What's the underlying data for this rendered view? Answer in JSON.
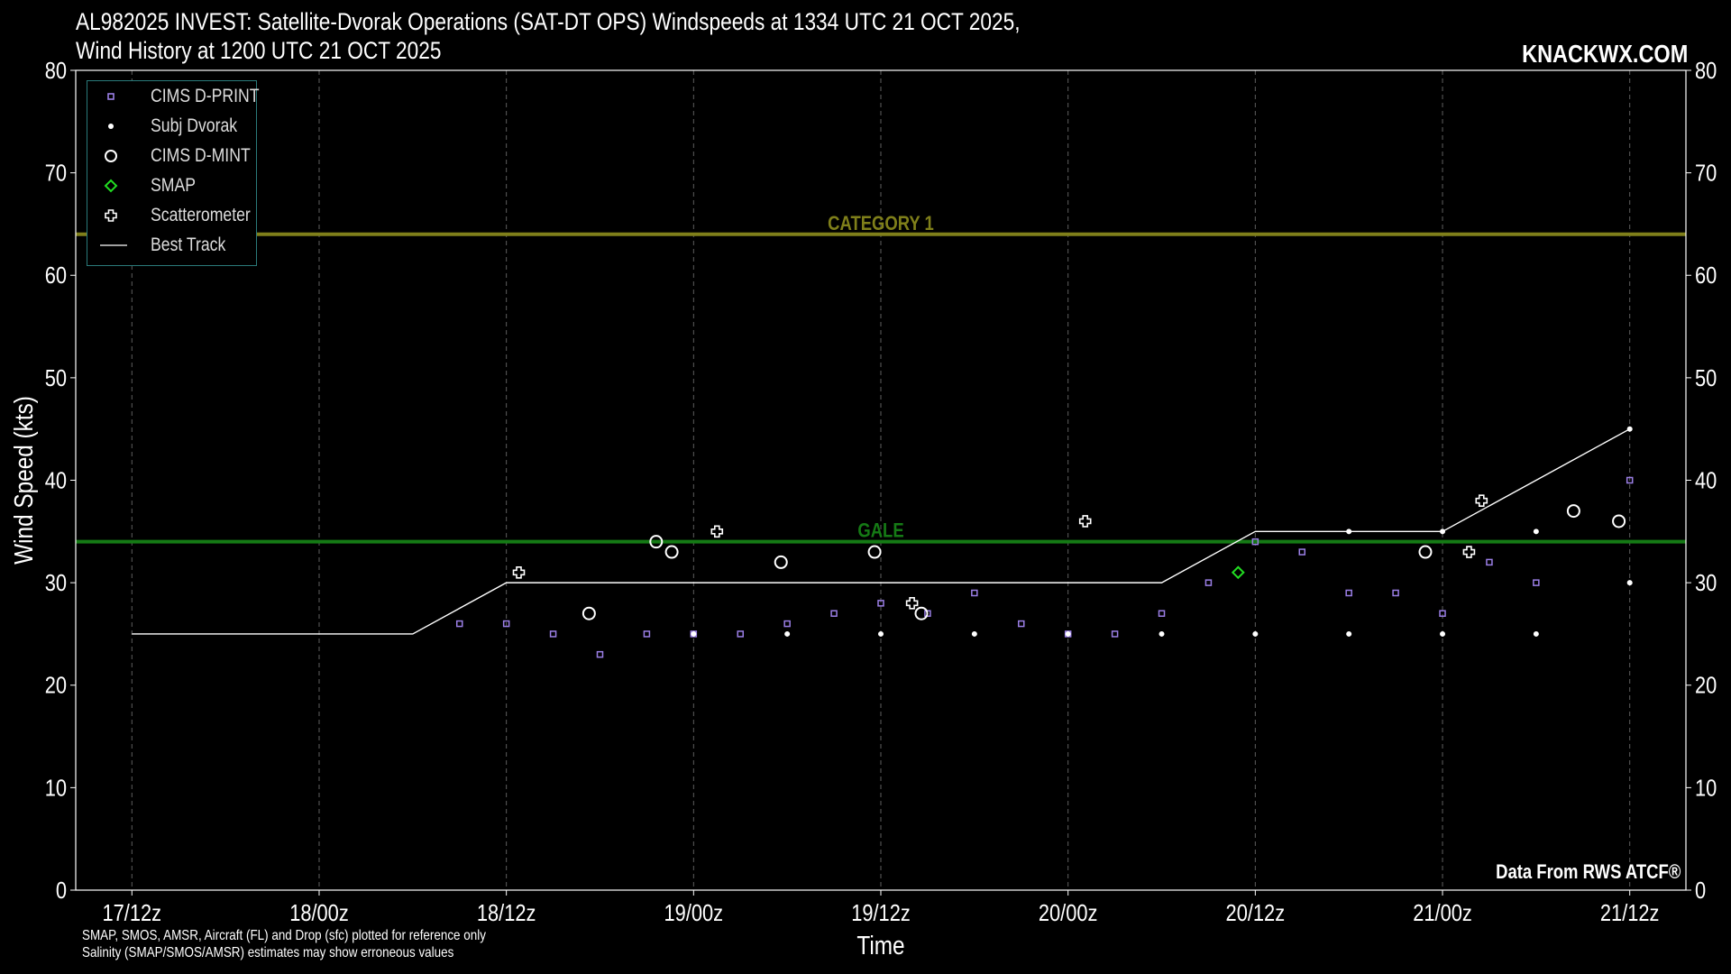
{
  "header": {
    "title_line1": "AL982025 INVEST: Satellite-Dvorak Operations (SAT-DT OPS) Windspeeds at 1334 UTC 21 OCT 2025,",
    "title_line2": "Wind History at 1200 UTC 21 OCT 2025",
    "brand": "KNACKWX.COM"
  },
  "footer": {
    "note_line1": "SMAP, SMOS, AMSR, Aircraft (FL) and Drop (sfc) plotted for reference only",
    "note_line2": "Salinity (SMAP/SMOS/AMSR) estimates may show erroneous values",
    "credit": "Data From RWS ATCF®"
  },
  "legend": [
    {
      "label": "CIMS D-PRINT",
      "icon": "square"
    },
    {
      "label": "Subj Dvorak",
      "icon": "dot"
    },
    {
      "label": "CIMS D-MINT",
      "icon": "circle"
    },
    {
      "label": "SMAP",
      "icon": "diamond"
    },
    {
      "label": "Scatterometer",
      "icon": "plus"
    },
    {
      "label": "Best Track",
      "icon": "line"
    }
  ],
  "colors": {
    "background": "#000000",
    "dprint": "#9b7fe6",
    "subj": "#ffffff",
    "dmint": "#ffffff",
    "smap": "#22dd22",
    "scat": "#ffffff",
    "best_track": "#ffffff",
    "category1": "#7f7f1a",
    "gale": "#157a15",
    "grid": "#888888"
  },
  "chart_data": {
    "type": "scatter",
    "xlabel": "Time",
    "ylabel": "Wind Speed (kts)",
    "x_units": "hours after 17/12z",
    "xlim": [
      -3.6,
      99.6
    ],
    "ylim": [
      0,
      80
    ],
    "yticks": [
      0,
      10,
      20,
      30,
      40,
      50,
      60,
      70,
      80
    ],
    "xticks": [
      {
        "x": 0,
        "label": "17/12z"
      },
      {
        "x": 12,
        "label": "18/00z"
      },
      {
        "x": 24,
        "label": "18/12z"
      },
      {
        "x": 36,
        "label": "19/00z"
      },
      {
        "x": 48,
        "label": "19/12z"
      },
      {
        "x": 60,
        "label": "20/00z"
      },
      {
        "x": 72,
        "label": "20/12z"
      },
      {
        "x": 84,
        "label": "21/00z"
      },
      {
        "x": 96,
        "label": "21/12z"
      }
    ],
    "grid": "vertical dashed",
    "reference_lines": [
      {
        "label": "CATEGORY 1",
        "y": 64
      },
      {
        "label": "GALE",
        "y": 34
      }
    ],
    "series": [
      {
        "name": "CIMS D-PRINT",
        "marker": "square",
        "points": [
          [
            21,
            26
          ],
          [
            24,
            26
          ],
          [
            27,
            25
          ],
          [
            30,
            23
          ],
          [
            33,
            25
          ],
          [
            36,
            25
          ],
          [
            39,
            25
          ],
          [
            42,
            26
          ],
          [
            45,
            27
          ],
          [
            48,
            28
          ],
          [
            51,
            27
          ],
          [
            54,
            29
          ],
          [
            57,
            26
          ],
          [
            60,
            25
          ],
          [
            63,
            25
          ],
          [
            66,
            27
          ],
          [
            69,
            30
          ],
          [
            72,
            34
          ],
          [
            75,
            33
          ],
          [
            78,
            29
          ],
          [
            81,
            29
          ],
          [
            84,
            27
          ],
          [
            87,
            32
          ],
          [
            90,
            30
          ],
          [
            96,
            40
          ]
        ]
      },
      {
        "name": "Subj Dvorak",
        "marker": "dot",
        "points": [
          [
            36,
            25
          ],
          [
            42,
            25
          ],
          [
            48,
            25
          ],
          [
            54,
            25
          ],
          [
            60,
            25
          ],
          [
            66,
            25
          ],
          [
            72,
            25
          ],
          [
            78,
            35
          ],
          [
            78,
            25
          ],
          [
            84,
            35
          ],
          [
            84,
            25
          ],
          [
            90,
            35
          ],
          [
            90,
            25
          ],
          [
            96,
            45
          ],
          [
            96,
            30
          ]
        ]
      },
      {
        "name": "CIMS D-MINT",
        "marker": "circle",
        "points": [
          [
            29.3,
            27
          ],
          [
            33.6,
            34
          ],
          [
            34.6,
            33
          ],
          [
            41.6,
            32
          ],
          [
            47.6,
            33
          ],
          [
            50.6,
            27
          ],
          [
            82.9,
            33
          ],
          [
            92.4,
            37
          ],
          [
            95.3,
            36
          ]
        ]
      },
      {
        "name": "SMAP",
        "marker": "diamond",
        "points": [
          [
            70.9,
            31
          ]
        ]
      },
      {
        "name": "Scatterometer",
        "marker": "plus",
        "points": [
          [
            24.8,
            31
          ],
          [
            37.5,
            35
          ],
          [
            50,
            28
          ],
          [
            61.1,
            36
          ],
          [
            85.7,
            33
          ],
          [
            86.5,
            38
          ]
        ]
      },
      {
        "name": "Best Track",
        "marker": "line",
        "points": [
          [
            0,
            25
          ],
          [
            18,
            25
          ],
          [
            24,
            30
          ],
          [
            66,
            30
          ],
          [
            72,
            35
          ],
          [
            84,
            35
          ],
          [
            96,
            45
          ]
        ]
      }
    ]
  }
}
